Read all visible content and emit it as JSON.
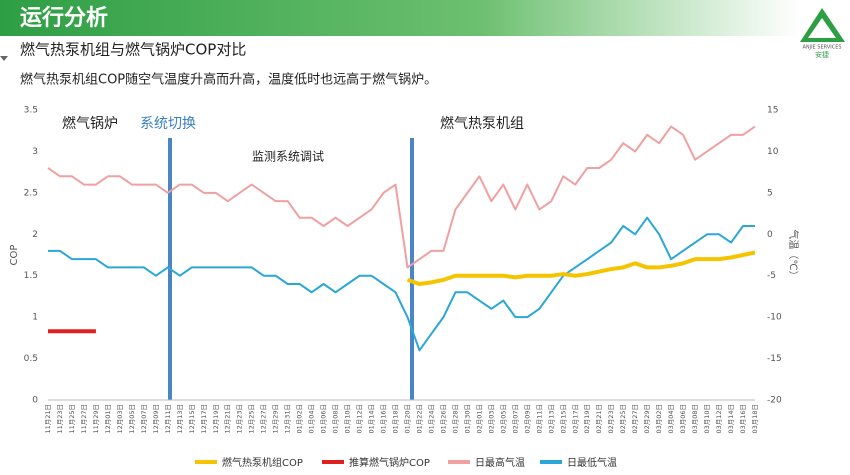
{
  "header": {
    "title": "运行分析",
    "subtitle": "燃气热泵机组与燃气锅炉COP对比",
    "description": "燃气热泵机组COP随空气温度升高而升高，温度低时也远高于燃气锅炉。",
    "logo": {
      "line1": "ANJIE SERVICES",
      "line2": "安捷"
    }
  },
  "chart_data": {
    "type": "line",
    "ylabel": "COP",
    "y2label": "气温（℃）",
    "categories": [
      "11月21日",
      "11月23日",
      "11月25日",
      "11月27日",
      "11月29日",
      "12月01日",
      "12月03日",
      "12月05日",
      "12月07日",
      "12月09日",
      "12月11日",
      "12月13日",
      "12月15日",
      "12月17日",
      "12月19日",
      "12月21日",
      "12月23日",
      "12月25日",
      "12月27日",
      "12月29日",
      "12月31日",
      "01月02日",
      "01月04日",
      "01月06日",
      "01月08日",
      "01月10日",
      "01月12日",
      "01月14日",
      "01月16日",
      "01月18日",
      "01月20日",
      "01月22日",
      "01月24日",
      "01月26日",
      "01月28日",
      "01月30日",
      "02月01日",
      "02月03日",
      "02月05日",
      "02月07日",
      "02月09日",
      "02月11日",
      "02月13日",
      "02月15日",
      "02月17日",
      "02月19日",
      "02月21日",
      "02月23日",
      "02月25日",
      "02月27日",
      "02月29日",
      "03月02日",
      "03月04日",
      "03月06日",
      "03月08日",
      "03月10日",
      "03月12日",
      "03月14日",
      "03月16日",
      "03月18日"
    ],
    "ylim": [
      0,
      3.5
    ],
    "yticks": [
      0,
      0.5,
      1,
      1.5,
      2,
      2.5,
      3,
      3.5
    ],
    "y2lim": [
      -20,
      15
    ],
    "y2ticks": [
      -20,
      -15,
      -10,
      -5,
      0,
      5,
      10,
      15
    ],
    "grid": false,
    "legend": "bottom",
    "series": [
      {
        "name": "燃气热泵机组COP",
        "color": "#f5c400",
        "values": [
          null,
          null,
          null,
          null,
          null,
          null,
          null,
          null,
          null,
          null,
          null,
          null,
          null,
          null,
          null,
          null,
          null,
          null,
          null,
          null,
          null,
          null,
          null,
          null,
          null,
          null,
          null,
          null,
          null,
          null,
          1.45,
          1.4,
          1.42,
          1.45,
          1.5,
          1.5,
          1.5,
          1.5,
          1.5,
          1.48,
          1.5,
          1.5,
          1.5,
          1.52,
          1.5,
          1.52,
          1.55,
          1.58,
          1.6,
          1.65,
          1.6,
          1.6,
          1.62,
          1.65,
          1.7,
          1.7,
          1.7,
          1.72,
          1.75,
          1.78
        ]
      },
      {
        "name": "推算燃气锅炉COP",
        "color": "#e02020",
        "values": [
          0.83,
          0.83,
          0.83,
          0.83,
          0.83,
          null,
          null,
          null,
          null,
          null,
          null,
          null,
          null,
          null,
          null,
          null,
          null,
          null,
          null,
          null,
          null,
          null,
          null,
          null,
          null,
          null,
          null,
          null,
          null,
          null,
          null,
          null,
          null,
          null,
          null,
          null,
          null,
          null,
          null,
          null,
          null,
          null,
          null,
          null,
          null,
          null,
          null,
          null,
          null,
          null,
          null,
          null,
          null,
          null,
          null,
          null,
          null,
          null,
          null,
          null
        ]
      },
      {
        "name": "日最高气温",
        "color": "#f0a0a0",
        "axis": "y2",
        "values": [
          8,
          7,
          7,
          6,
          6,
          7,
          7,
          6,
          6,
          6,
          5,
          6,
          6,
          5,
          5,
          4,
          5,
          6,
          5,
          4,
          4,
          2,
          2,
          1,
          2,
          1,
          2,
          3,
          5,
          6,
          -4,
          -3,
          -2,
          -2,
          3,
          5,
          7,
          4,
          6,
          3,
          6,
          3,
          4,
          7,
          6,
          8,
          8,
          9,
          11,
          10,
          12,
          11,
          13,
          12,
          9,
          10,
          11,
          12,
          12,
          13
        ]
      },
      {
        "name": "日最低气温",
        "color": "#2aa6d8",
        "axis": "y2",
        "values": [
          -2,
          -2,
          -3,
          -3,
          -3,
          -4,
          -4,
          -4,
          -4,
          -5,
          -4,
          -5,
          -4,
          -4,
          -4,
          -4,
          -4,
          -4,
          -5,
          -5,
          -6,
          -6,
          -7,
          -6,
          -7,
          -6,
          -5,
          -5,
          -6,
          -7,
          -10,
          -14,
          -12,
          -10,
          -7,
          -7,
          -8,
          -9,
          -8,
          -10,
          -10,
          -9,
          -7,
          -5,
          -4,
          -3,
          -2,
          -1,
          1,
          0,
          2,
          0,
          -3,
          -2,
          -1,
          0,
          0,
          -1,
          1,
          1
        ]
      }
    ],
    "annotations": [
      {
        "text": "燃气锅炉"
      },
      {
        "text": "系统切换"
      },
      {
        "text": "监测系统调试"
      },
      {
        "text": "燃气热泵机组"
      }
    ]
  }
}
